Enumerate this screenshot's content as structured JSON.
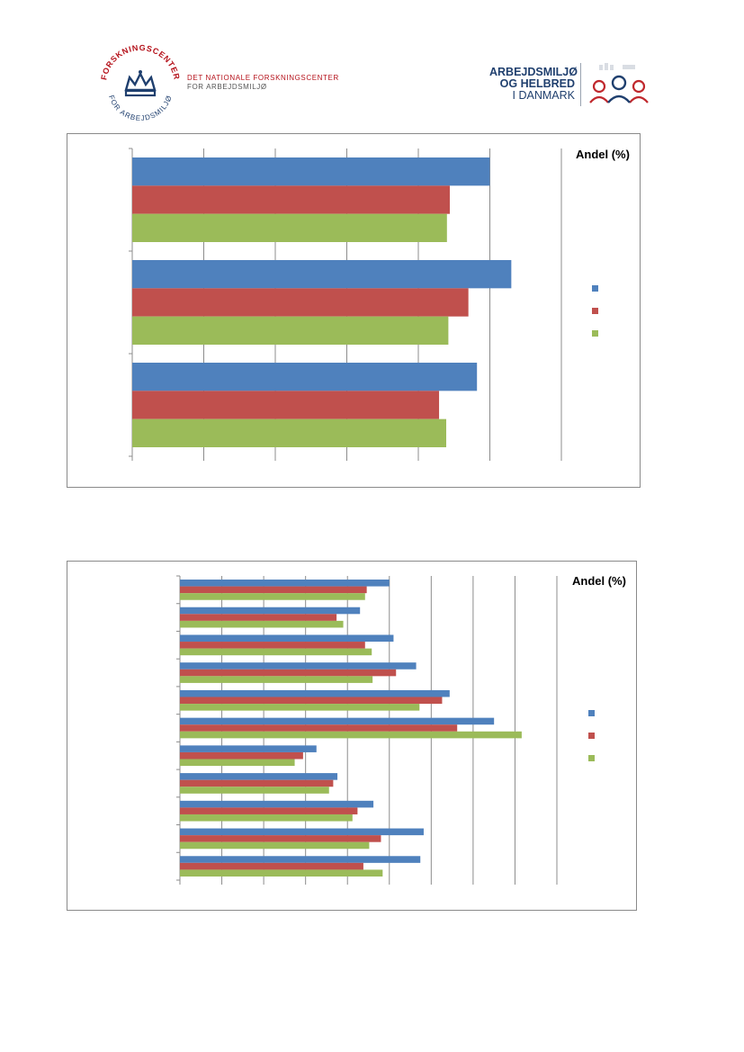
{
  "header": {
    "left_logo": {
      "seal_text_top": "FORSKNINGSCENTER",
      "seal_text_bottom": "FOR ARBEJDSMILJØ",
      "org_line1": "DET NATIONALE FORSKNINGSCENTER",
      "org_line2": "FOR ARBEJDSMILJØ"
    },
    "right_logo": {
      "line1": "ARBEJDSMILJØ",
      "line2": "OG HELBRED",
      "line3": "I DANMARK"
    }
  },
  "colors": {
    "series_blue": "#4f81bd",
    "series_red": "#c0504d",
    "series_green": "#9bbb59",
    "brand_red": "#b5121b",
    "brand_navy": "#1f3f6e"
  },
  "chart_data": [
    {
      "type": "bar",
      "orientation": "horizontal",
      "unit_label": "Andel (%)",
      "categories": [
        "",
        "",
        ""
      ],
      "series": [
        {
          "values": [
            50,
            53,
            48.2
          ]
        },
        {
          "values": [
            44.4,
            47,
            42.9
          ]
        },
        {
          "values": [
            44,
            44.2,
            43.9
          ]
        }
      ],
      "xlim": [
        0,
        60
      ],
      "grid": true,
      "legend": "right"
    },
    {
      "type": "bar",
      "orientation": "horizontal",
      "unit_label": "Andel (%)",
      "categories": [
        "",
        "",
        "",
        "",
        "",
        "",
        "",
        "",
        "",
        "",
        ""
      ],
      "series": [
        {
          "values": [
            25,
            21.5,
            25.5,
            28.2,
            32.2,
            37.5,
            16.3,
            18.8,
            23.1,
            29.1,
            28.7
          ]
        },
        {
          "values": [
            22.3,
            18.7,
            22.1,
            25.8,
            31.3,
            33.1,
            14.7,
            18.3,
            21.2,
            24,
            21.9
          ]
        },
        {
          "values": [
            22.1,
            19.5,
            22.9,
            23,
            28.6,
            40.8,
            13.7,
            17.8,
            20.6,
            22.6,
            24.2
          ]
        }
      ],
      "xlim": [
        0,
        45
      ],
      "grid": true,
      "legend": "right"
    }
  ]
}
